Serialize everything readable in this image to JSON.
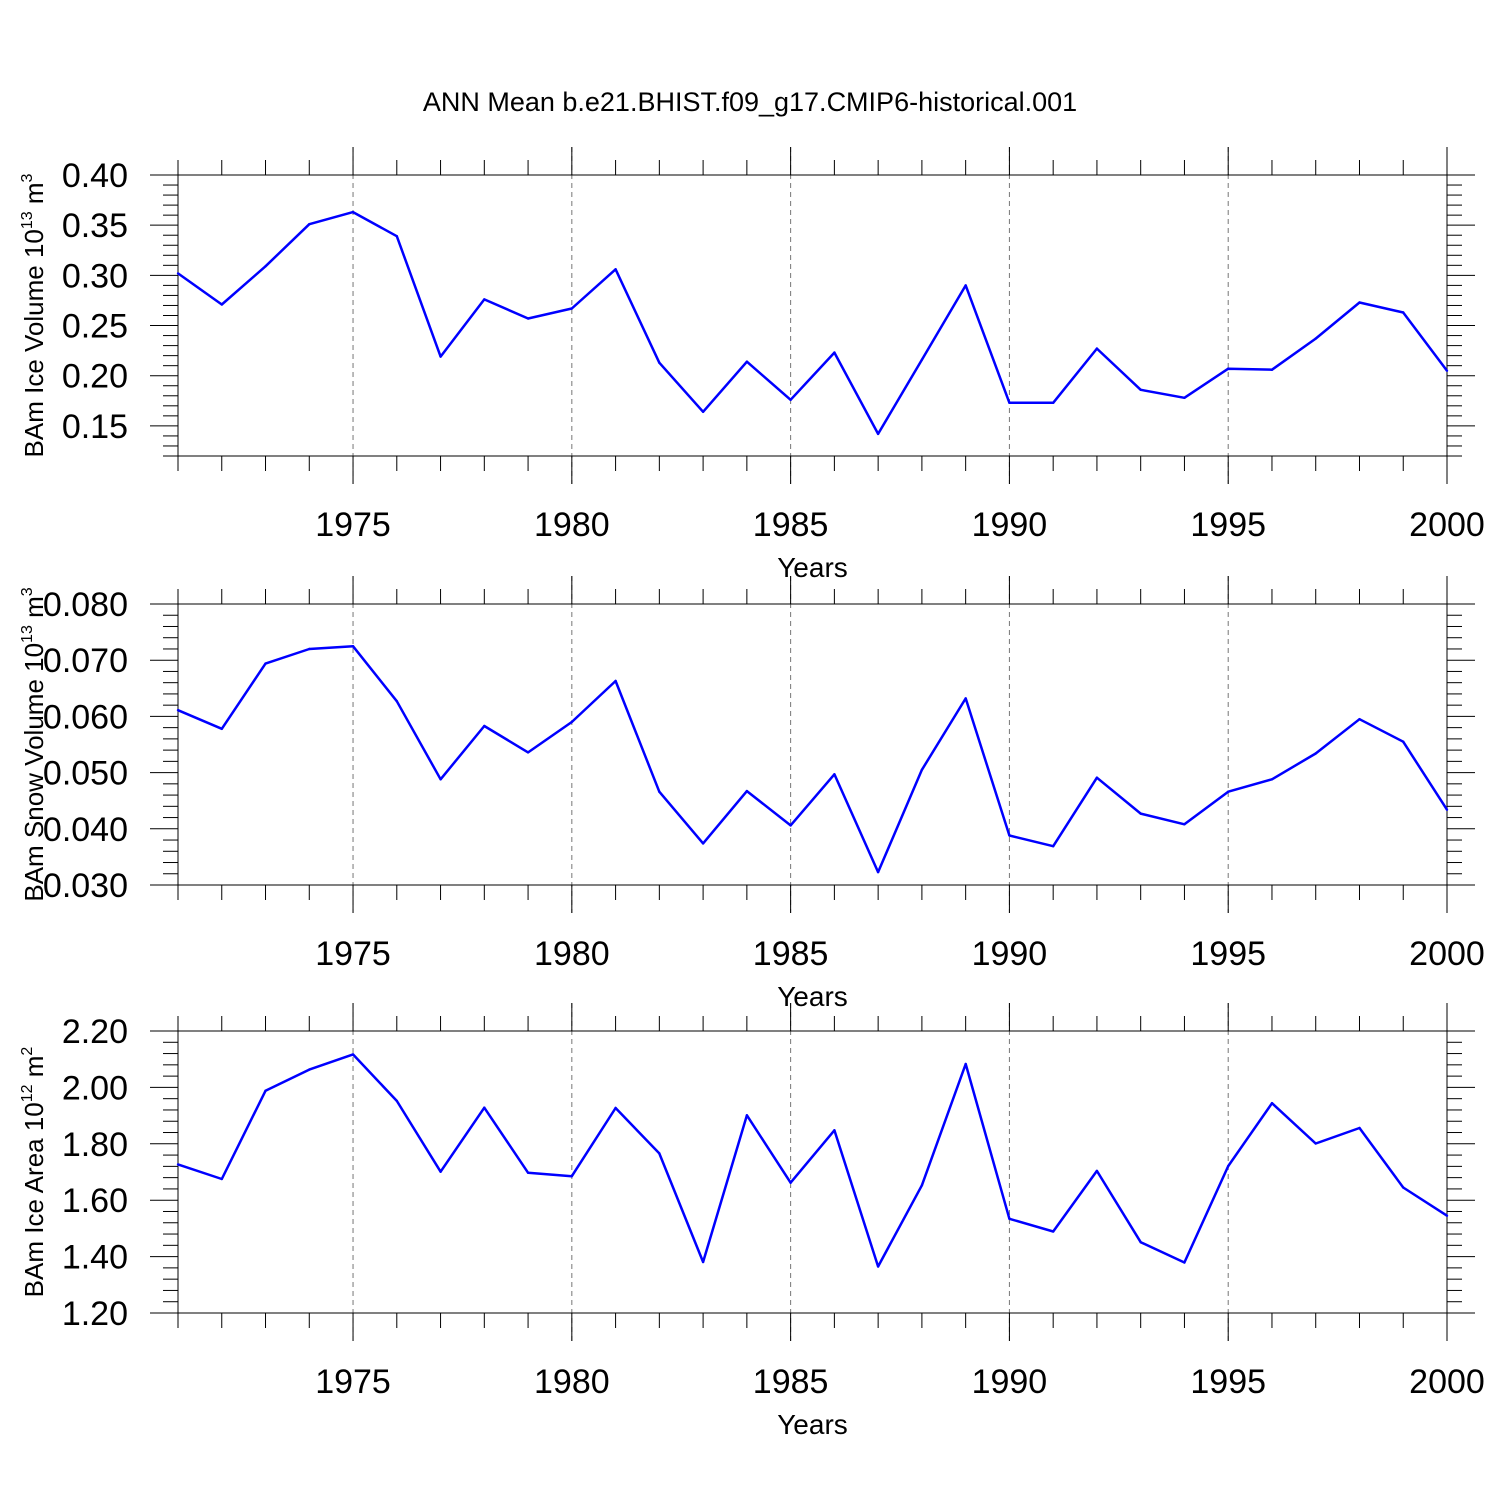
{
  "title": "ANN Mean b.e21.BHIST.f09_g17.CMIP6-historical.001",
  "colors": {
    "line": "#0000ff",
    "grid": "#777777",
    "axis": "#000000"
  },
  "chart_data": [
    {
      "type": "line",
      "ylabel": {
        "main": "BAm Ice Volume 10",
        "exp": "13",
        "unit": " m",
        "unit_exp": "3"
      },
      "xlabel": "Years",
      "xlim": [
        1971,
        2000
      ],
      "ylim": [
        0.12,
        0.4
      ],
      "yticks": [
        "0.40",
        "0.35",
        "0.30",
        "0.25",
        "0.20",
        "0.15"
      ],
      "xticks": [
        "1975",
        "1980",
        "1985",
        "1990",
        "1995",
        "2000"
      ],
      "x": [
        1971,
        1972,
        1973,
        1974,
        1975,
        1976,
        1977,
        1978,
        1979,
        1980,
        1981,
        1982,
        1983,
        1984,
        1985,
        1986,
        1987,
        1988,
        1989,
        1990,
        1991,
        1992,
        1993,
        1994,
        1995,
        1996,
        1997,
        1998,
        1999,
        2000
      ],
      "values": [
        0.302,
        0.271,
        0.309,
        0.351,
        0.363,
        0.339,
        0.219,
        0.276,
        0.257,
        0.267,
        0.306,
        0.213,
        0.164,
        0.214,
        0.176,
        0.223,
        0.142,
        0.216,
        0.29,
        0.173,
        0.173,
        0.227,
        0.186,
        0.178,
        0.207,
        0.206,
        0.237,
        0.273,
        0.263,
        0.205
      ]
    },
    {
      "type": "line",
      "ylabel": {
        "main": "BAm Snow Volume 10",
        "exp": "13",
        "unit": " m",
        "unit_exp": "3"
      },
      "xlabel": "Years",
      "xlim": [
        1971,
        2000
      ],
      "ylim": [
        0.03,
        0.08
      ],
      "yticks": [
        "0.080",
        "0.070",
        "0.060",
        "0.050",
        "0.040",
        "0.030"
      ],
      "xticks": [
        "1975",
        "1980",
        "1985",
        "1990",
        "1995",
        "2000"
      ],
      "x": [
        1971,
        1972,
        1973,
        1974,
        1975,
        1976,
        1977,
        1978,
        1979,
        1980,
        1981,
        1982,
        1983,
        1984,
        1985,
        1986,
        1987,
        1988,
        1989,
        1990,
        1991,
        1992,
        1993,
        1994,
        1995,
        1996,
        1997,
        1998,
        1999,
        2000
      ],
      "values": [
        0.0611,
        0.0578,
        0.0694,
        0.072,
        0.0725,
        0.0627,
        0.0488,
        0.0583,
        0.0536,
        0.059,
        0.0663,
        0.0466,
        0.0374,
        0.0467,
        0.0406,
        0.0497,
        0.0323,
        0.0505,
        0.0632,
        0.0388,
        0.0369,
        0.0491,
        0.0427,
        0.0408,
        0.0466,
        0.0488,
        0.0534,
        0.0595,
        0.0555,
        0.0434
      ]
    },
    {
      "type": "line",
      "ylabel": {
        "main": "BAm Ice Area 10",
        "exp": "12",
        "unit": " m",
        "unit_exp": "2"
      },
      "xlabel": "Years",
      "xlim": [
        1971,
        2000
      ],
      "ylim": [
        1.2,
        2.2
      ],
      "yticks": [
        "2.20",
        "2.00",
        "1.80",
        "1.60",
        "1.40",
        "1.20"
      ],
      "xticks": [
        "1975",
        "1980",
        "1985",
        "1990",
        "1995",
        "2000"
      ],
      "x": [
        1971,
        1972,
        1973,
        1974,
        1975,
        1976,
        1977,
        1978,
        1979,
        1980,
        1981,
        1982,
        1983,
        1984,
        1985,
        1986,
        1987,
        1988,
        1989,
        1990,
        1991,
        1992,
        1993,
        1994,
        1995,
        1996,
        1997,
        1998,
        1999,
        2000
      ],
      "values": [
        1.727,
        1.675,
        1.988,
        2.063,
        2.117,
        1.952,
        1.701,
        1.928,
        1.697,
        1.685,
        1.927,
        1.766,
        1.381,
        1.901,
        1.662,
        1.848,
        1.365,
        1.653,
        2.083,
        1.534,
        1.489,
        1.704,
        1.451,
        1.379,
        1.721,
        1.944,
        1.801,
        1.856,
        1.645,
        1.545
      ]
    }
  ]
}
